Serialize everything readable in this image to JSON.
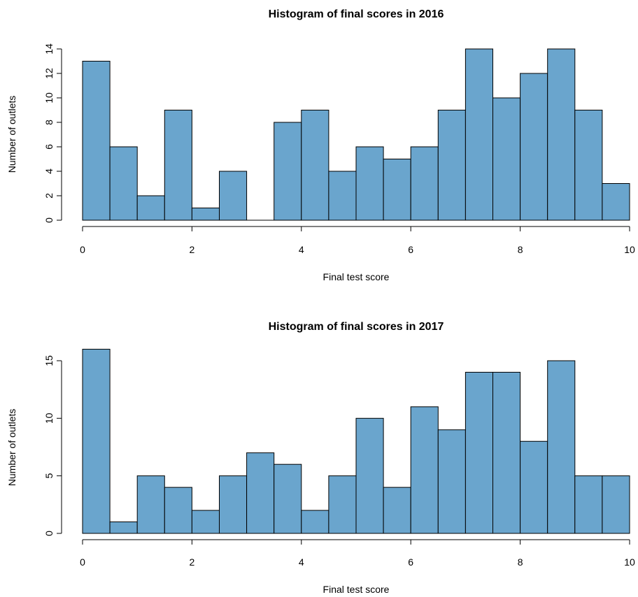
{
  "chart_data": [
    {
      "type": "bar",
      "title": "Histogram of final scores in 2016",
      "xlabel": "Final test score",
      "ylabel": "Number of outlets",
      "bin_edges": [
        0,
        0.5,
        1,
        1.5,
        2,
        2.5,
        3,
        3.5,
        4,
        4.5,
        5,
        5.5,
        6,
        6.5,
        7,
        7.5,
        8,
        8.5,
        9,
        9.5,
        10
      ],
      "values": [
        13,
        6,
        2,
        9,
        1,
        4,
        0,
        8,
        9,
        4,
        6,
        5,
        6,
        9,
        14,
        10,
        12,
        14,
        9,
        3
      ],
      "xlim": [
        0,
        10
      ],
      "ylim": [
        0,
        14
      ],
      "x_ticks": [
        0,
        2,
        4,
        6,
        8,
        10
      ],
      "y_ticks": [
        0,
        2,
        4,
        6,
        8,
        10,
        12,
        14
      ],
      "grid": false,
      "bar_color": "#6aa5cd"
    },
    {
      "type": "bar",
      "title": "Histogram of final scores in 2017",
      "xlabel": "Final test score",
      "ylabel": "Number of outlets",
      "bin_edges": [
        0,
        0.5,
        1,
        1.5,
        2,
        2.5,
        3,
        3.5,
        4,
        4.5,
        5,
        5.5,
        6,
        6.5,
        7,
        7.5,
        8,
        8.5,
        9,
        9.5,
        10
      ],
      "values": [
        16,
        1,
        5,
        4,
        2,
        5,
        7,
        6,
        2,
        5,
        10,
        4,
        11,
        9,
        14,
        14,
        8,
        15,
        5,
        5
      ],
      "xlim": [
        0,
        10
      ],
      "ylim": [
        0,
        15
      ],
      "x_ticks": [
        0,
        2,
        4,
        6,
        8,
        10
      ],
      "y_ticks": [
        0,
        5,
        10,
        15
      ],
      "grid": false,
      "bar_color": "#6aa5cd"
    }
  ]
}
